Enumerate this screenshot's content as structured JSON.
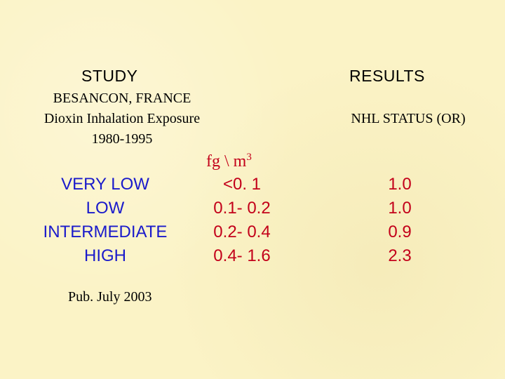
{
  "study_header": "STUDY",
  "results_header": "RESULTS",
  "study": {
    "location": "BESANCON, FRANCE",
    "exposure": "Dioxin Inhalation Exposure",
    "period": "1980-1995"
  },
  "results_subheader": "NHL STATUS (OR)",
  "unit": {
    "base": "fg \\ m",
    "exponent": "3"
  },
  "rows": [
    {
      "level": "VERY LOW",
      "range": "<0. 1",
      "or": "1.0"
    },
    {
      "level": "LOW",
      "range": "0.1- 0.2",
      "or": "1.0"
    },
    {
      "level": "INTERMEDIATE",
      "range": "0.2- 0.4",
      "or": "0.9"
    },
    {
      "level": "HIGH",
      "range": "0.4- 1.6",
      "or": "2.3"
    }
  ],
  "footnote": "Pub. July 2003",
  "colors": {
    "background": "#fbf3c6",
    "level_text": "#1a1acb",
    "value_text": "#c3001a"
  }
}
